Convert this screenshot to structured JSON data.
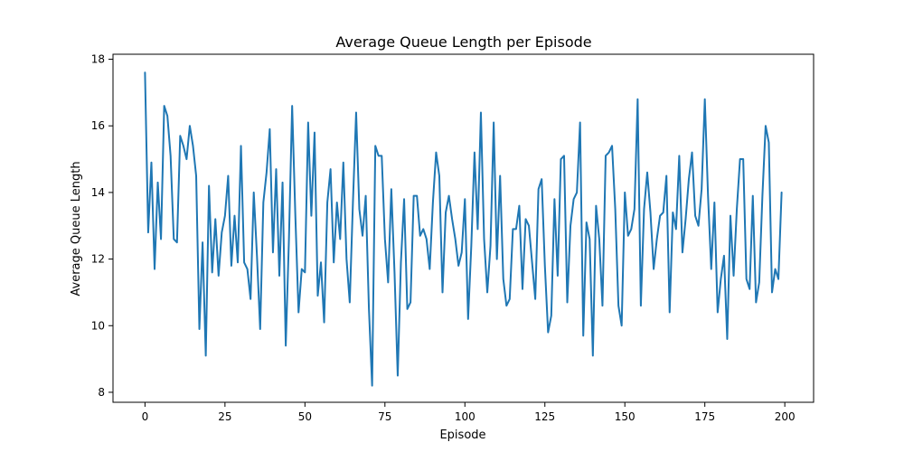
{
  "chart_data": {
    "type": "line",
    "title": "Average Queue Length per Episode",
    "xlabel": "Episode",
    "ylabel": "Average Queue Length",
    "xlim": [
      -10,
      209
    ],
    "ylim": [
      7.7,
      18.15
    ],
    "xticks": [
      0,
      25,
      50,
      75,
      100,
      125,
      150,
      175,
      200
    ],
    "yticks": [
      8,
      10,
      12,
      14,
      16,
      18
    ],
    "grid": false,
    "legend": "none",
    "series": [
      {
        "name": "Average Queue Length",
        "color": "#1f77b4",
        "x_start": 0,
        "x_step": 1,
        "values": [
          17.6,
          12.8,
          14.9,
          11.7,
          14.3,
          12.6,
          16.6,
          16.3,
          15.1,
          12.6,
          12.5,
          15.7,
          15.4,
          15.0,
          16.0,
          15.4,
          14.5,
          9.9,
          12.5,
          9.1,
          14.2,
          11.6,
          13.2,
          11.5,
          12.8,
          13.3,
          14.5,
          11.8,
          13.3,
          11.9,
          15.4,
          11.9,
          11.7,
          10.8,
          14.0,
          12.1,
          9.9,
          13.7,
          14.6,
          15.9,
          12.2,
          14.7,
          11.5,
          14.3,
          9.4,
          12.6,
          16.6,
          13.3,
          10.4,
          11.7,
          11.6,
          16.1,
          13.3,
          15.8,
          10.9,
          11.9,
          10.1,
          13.7,
          14.7,
          11.9,
          13.7,
          12.6,
          14.9,
          12.0,
          10.7,
          13.7,
          16.4,
          13.5,
          12.7,
          13.9,
          10.5,
          8.2,
          15.4,
          15.1,
          15.1,
          12.6,
          11.3,
          14.1,
          11.6,
          8.5,
          11.9,
          13.8,
          10.5,
          10.7,
          13.9,
          13.9,
          12.7,
          12.9,
          12.6,
          11.7,
          13.7,
          15.2,
          14.5,
          11.0,
          13.4,
          13.9,
          13.2,
          12.6,
          11.8,
          12.2,
          13.8,
          10.2,
          12.4,
          15.2,
          12.9,
          16.4,
          12.6,
          11.0,
          12.4,
          16.1,
          12.0,
          14.5,
          11.4,
          10.6,
          10.8,
          12.9,
          12.9,
          13.6,
          11.1,
          13.2,
          13.0,
          11.9,
          10.8,
          14.1,
          14.4,
          11.8,
          9.8,
          10.3,
          13.8,
          11.5,
          15.0,
          15.1,
          10.7,
          13.0,
          13.8,
          14.0,
          16.1,
          9.7,
          13.1,
          12.6,
          9.1,
          13.6,
          12.6,
          10.6,
          15.1,
          15.2,
          15.4,
          13.5,
          10.6,
          10.0,
          14.0,
          12.7,
          12.9,
          13.5,
          16.8,
          10.6,
          13.5,
          14.6,
          13.4,
          11.7,
          12.6,
          13.3,
          13.4,
          14.5,
          10.4,
          13.4,
          12.9,
          15.1,
          12.2,
          13.2,
          14.4,
          15.2,
          13.3,
          13.0,
          14.1,
          16.8,
          13.9,
          11.7,
          13.7,
          10.4,
          11.4,
          12.1,
          9.6,
          13.3,
          11.5,
          13.5,
          15.0,
          15.0,
          11.4,
          11.1,
          13.9,
          10.7,
          11.3,
          13.9,
          16.0,
          15.5,
          11.0,
          11.7,
          11.4,
          14.0
        ]
      }
    ]
  }
}
